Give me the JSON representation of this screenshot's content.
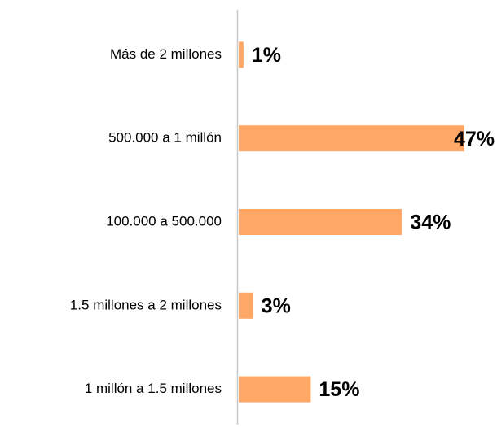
{
  "chart_data": {
    "type": "bar",
    "orientation": "horizontal",
    "categories": [
      "Más de 2 millones",
      "500.000 a 1 millón",
      "100.000 a 500.000",
      "1.5 millones a 2 millones",
      "1 millón a 1.5 millones"
    ],
    "values": [
      1,
      47,
      34,
      3,
      15
    ],
    "value_labels": [
      "1%",
      "47%",
      "34%",
      "3%",
      "15%"
    ],
    "color": "#ffa766"
  }
}
